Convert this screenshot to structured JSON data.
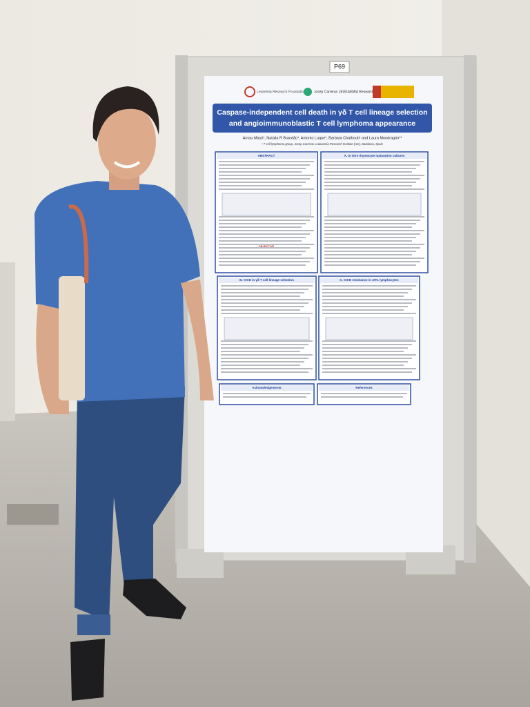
{
  "board_number": "P69",
  "logos": [
    "Leukemia Research Foundation",
    "Josep Carreras LEUKAEMIA Research Institute"
  ],
  "title_lines": [
    "Caspase-independent cell death in γδ T cell lineage selection",
    "and angioimmunoblastic T cell lymphoma appearance"
  ],
  "authors": "Arnau Masó¹, Natalia R Brandão¹, Antonio Luque¹, Barbara Chalhoub¹ and Laura Mondragón*¹",
  "affiliation": "¹ T cell lymphoma group, Josep Carreras Leukaemia Research Institute (IJC), Badalona, Spain",
  "sections": [
    "ABSTRACT",
    "A. In vitro thymocyte maturation cultures",
    "B. CICD in γδ T cell lineage selection",
    "C. CICD resistance in AITL lymphocytes",
    "Acknowledgements",
    "References"
  ],
  "objective": "OBJECTIVE"
}
